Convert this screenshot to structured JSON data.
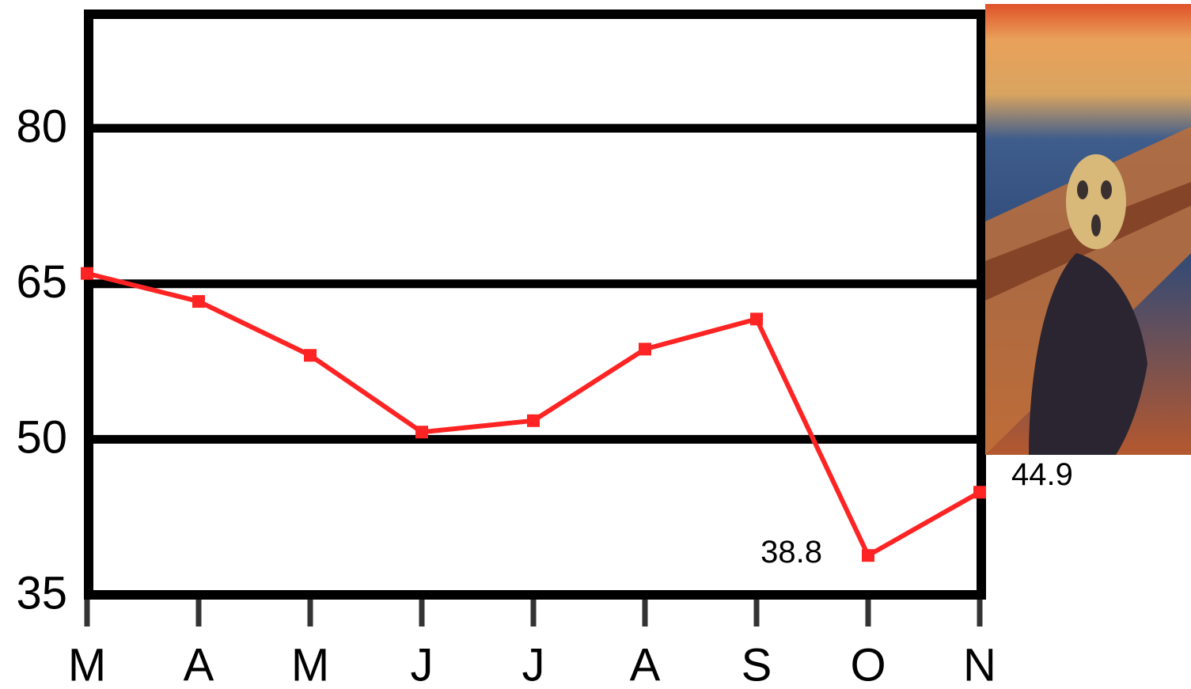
{
  "chart_data": {
    "type": "line",
    "categories": [
      "M",
      "A",
      "M",
      "J",
      "J",
      "A",
      "S",
      "O",
      "N"
    ],
    "series": [
      {
        "color": "#ff2424",
        "values": [
          66.0,
          63.3,
          58.1,
          50.7,
          51.8,
          58.7,
          61.6,
          38.8,
          44.9
        ],
        "show_labels": [
          false,
          false,
          false,
          false,
          false,
          false,
          false,
          true,
          true
        ]
      }
    ],
    "ylim": [
      35,
      91
    ],
    "yticks": [
      35,
      50,
      65,
      80
    ],
    "grid": true
  }
}
